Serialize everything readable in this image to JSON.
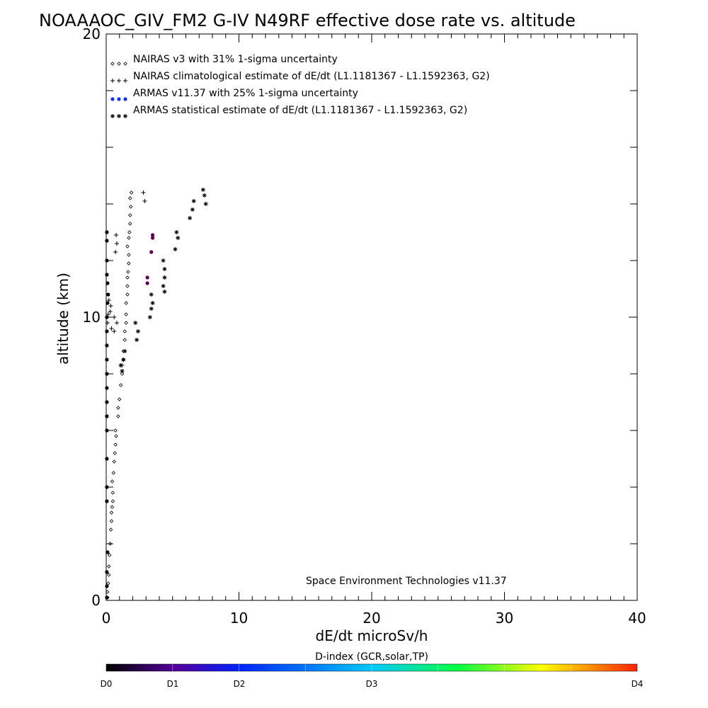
{
  "chart_data": {
    "type": "scatter",
    "title": "NOAAAOC_GIV_FM2 G-IV   N49RF  effective dose rate vs. altitude",
    "xlabel": "dE/dt microSv/h",
    "ylabel": "altitude (km)",
    "xlim": [
      0,
      40
    ],
    "ylim": [
      0,
      20
    ],
    "x_ticks": [
      "0",
      "10",
      "20",
      "30",
      "40"
    ],
    "y_ticks": [
      "0",
      "10",
      "20"
    ],
    "grid": false,
    "legend_position": "top-left",
    "legend": [
      {
        "symbol": "◇◇◇",
        "label": "NAIRAS v3 with 31% 1-sigma uncertainty"
      },
      {
        "symbol": "+++",
        "label": "NAIRAS climatological estimate of dE/dt (L1.1181367 - L1.1592363, G2)"
      },
      {
        "symbol": "●●●",
        "label": "ARMAS v11.37 with 25% 1-sigma uncertainty",
        "color": "#1133dd"
      },
      {
        "symbol": "***",
        "label": "ARMAS statistical estimate of dE/dt (L1.1181367 - L1.1592363, G2)"
      }
    ],
    "annotation": "Space Environment Technologies v11.37",
    "colorbar": {
      "title": "D-index (GCR,solar,TP)",
      "labels": [
        "D0",
        "D1",
        "D2",
        "D3",
        "D4"
      ],
      "colors": [
        "#000000",
        "#55009a",
        "#0022ff",
        "#00c8ff",
        "#00ff44",
        "#ffff00",
        "#ff2200"
      ]
    },
    "series": [
      {
        "name": "NAIRAS v3 with 31% 1-sigma uncertainty",
        "marker": "diamond",
        "points": [
          [
            0.1,
            0.1
          ],
          [
            0.1,
            0.3
          ],
          [
            0.15,
            0.6
          ],
          [
            0.2,
            0.9
          ],
          [
            0.2,
            1.2
          ],
          [
            0.25,
            1.6
          ],
          [
            0.3,
            2.0
          ],
          [
            0.35,
            2.5
          ],
          [
            0.4,
            2.8
          ],
          [
            0.4,
            3.1
          ],
          [
            0.45,
            3.3
          ],
          [
            0.5,
            3.5
          ],
          [
            0.5,
            3.8
          ],
          [
            0.45,
            4.2
          ],
          [
            0.55,
            4.5
          ],
          [
            0.6,
            4.9
          ],
          [
            0.65,
            5.2
          ],
          [
            0.7,
            5.5
          ],
          [
            0.75,
            5.8
          ],
          [
            0.7,
            6.0
          ],
          [
            0.9,
            6.5
          ],
          [
            0.9,
            6.8
          ],
          [
            1.0,
            7.1
          ],
          [
            1.1,
            7.6
          ],
          [
            1.2,
            8.0
          ],
          [
            1.3,
            8.5
          ],
          [
            1.3,
            8.8
          ],
          [
            1.4,
            9.2
          ],
          [
            1.4,
            9.5
          ],
          [
            1.5,
            9.8
          ],
          [
            1.5,
            10.1
          ],
          [
            1.5,
            10.5
          ],
          [
            1.6,
            10.8
          ],
          [
            1.6,
            11.1
          ],
          [
            1.6,
            11.4
          ],
          [
            1.65,
            11.6
          ],
          [
            1.7,
            11.9
          ],
          [
            1.7,
            12.2
          ],
          [
            1.6,
            12.5
          ],
          [
            1.7,
            12.8
          ],
          [
            1.75,
            13.0
          ],
          [
            1.8,
            13.3
          ],
          [
            1.8,
            13.6
          ],
          [
            1.85,
            13.9
          ],
          [
            1.8,
            14.2
          ],
          [
            1.9,
            14.4
          ]
        ]
      },
      {
        "name": "NAIRAS climatological estimate of dE/dt (L1.1181367 - L1.1592363, G2)",
        "marker": "plus",
        "points": [
          [
            0.1,
            9.8
          ],
          [
            0.15,
            10.1
          ],
          [
            0.3,
            10.2
          ],
          [
            0.35,
            10.4
          ],
          [
            0.2,
            10.6
          ],
          [
            0.4,
            9.6
          ],
          [
            0.6,
            9.5
          ],
          [
            0.8,
            9.8
          ],
          [
            0.6,
            10.0
          ],
          [
            0.7,
            12.3
          ],
          [
            0.8,
            12.6
          ],
          [
            0.75,
            12.9
          ],
          [
            1.2,
            8.3
          ],
          [
            1.3,
            8.5
          ],
          [
            2.8,
            14.4
          ],
          [
            2.9,
            14.1
          ]
        ]
      },
      {
        "name": "ARMAS v11.37 with 25% 1-sigma uncertainty",
        "marker": "dot",
        "points": [
          [
            0.05,
            0.1
          ],
          [
            0.05,
            0.5
          ],
          [
            0.05,
            1.0
          ],
          [
            0.1,
            1.7
          ],
          [
            0.05,
            3.5
          ],
          [
            0.05,
            4.0
          ],
          [
            0.05,
            5.0
          ],
          [
            0.05,
            6.0
          ],
          [
            0.05,
            6.5
          ],
          [
            0.05,
            7.0
          ],
          [
            0.05,
            7.5
          ],
          [
            0.05,
            8.0
          ],
          [
            0.05,
            8.5
          ],
          [
            0.05,
            9.0
          ],
          [
            0.05,
            9.5
          ],
          [
            0.05,
            10.0
          ],
          [
            0.1,
            10.5
          ],
          [
            0.15,
            10.8
          ],
          [
            0.1,
            11.2
          ],
          [
            0.05,
            11.5
          ],
          [
            0.05,
            12.0
          ],
          [
            0.05,
            12.7
          ],
          [
            0.05,
            13.0
          ],
          [
            3.1,
            11.4
          ],
          [
            3.1,
            11.2
          ],
          [
            3.4,
            12.3
          ],
          [
            3.5,
            12.8
          ],
          [
            3.5,
            12.9
          ]
        ]
      },
      {
        "name": "ARMAS statistical estimate of dE/dt (L1.1181367 - L1.1592363, G2)",
        "marker": "asterisk",
        "points": [
          [
            1.1,
            8.3
          ],
          [
            1.3,
            8.5
          ],
          [
            1.2,
            8.1
          ],
          [
            1.4,
            8.8
          ],
          [
            2.4,
            9.5
          ],
          [
            2.3,
            9.2
          ],
          [
            2.2,
            9.8
          ],
          [
            3.3,
            10.0
          ],
          [
            3.4,
            10.3
          ],
          [
            3.5,
            10.5
          ],
          [
            3.4,
            10.8
          ],
          [
            4.3,
            11.1
          ],
          [
            4.4,
            11.4
          ],
          [
            4.4,
            11.7
          ],
          [
            4.3,
            12.0
          ],
          [
            4.4,
            10.9
          ],
          [
            5.2,
            12.4
          ],
          [
            5.4,
            12.8
          ],
          [
            5.3,
            13.0
          ],
          [
            6.3,
            13.5
          ],
          [
            6.5,
            13.8
          ],
          [
            6.6,
            14.1
          ],
          [
            7.4,
            14.3
          ],
          [
            7.5,
            14.0
          ],
          [
            7.3,
            14.5
          ]
        ]
      }
    ]
  }
}
